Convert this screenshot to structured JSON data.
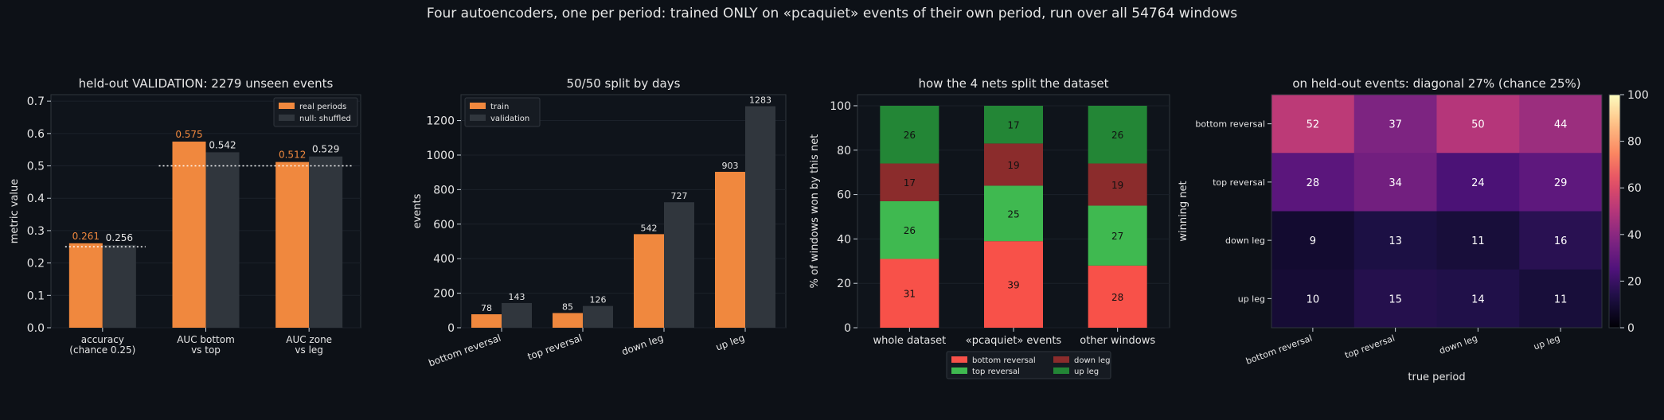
{
  "suptitle": "Four autoencoders, one per period: trained ONLY on «pcaquiet» events of their own period, run over all 54764 windows",
  "colors": {
    "orange": "#f0883e",
    "gray": "#30363d",
    "bg": "#0d1117",
    "axes": "#0f141b",
    "text": "#e6e6e6",
    "label_orange": "#f0883e",
    "bottom_reversal": "#f85149",
    "top_reversal": "#3fb950",
    "down_leg": "#8b2c2c",
    "up_leg": "#238636"
  },
  "chart_data": [
    {
      "type": "bar",
      "title": "held-out VALIDATION: 2279 unseen events",
      "ylabel": "metric value",
      "ylim": [
        0,
        0.72
      ],
      "yticks": [
        "0.0",
        "0.1",
        "0.2",
        "0.3",
        "0.4",
        "0.5",
        "0.6",
        "0.7"
      ],
      "categories": [
        [
          "accuracy",
          "(chance 0.25)"
        ],
        [
          "AUC bottom",
          "vs top"
        ],
        [
          "AUC zone",
          "vs leg"
        ]
      ],
      "series": [
        {
          "name": "real periods",
          "values": [
            0.261,
            0.575,
            0.512
          ],
          "labels": [
            "0.261",
            "0.575",
            "0.512"
          ]
        },
        {
          "name": "null: shuffled",
          "values": [
            0.256,
            0.542,
            0.529
          ],
          "labels": [
            "0.256",
            "0.542",
            "0.529"
          ]
        }
      ],
      "reference_lines": [
        {
          "from_category": 0,
          "value": 0.25
        },
        {
          "from_category": 1,
          "to_category": 2,
          "value": 0.5
        }
      ],
      "legend": "top-right"
    },
    {
      "type": "bar",
      "title": "50/50 split by days",
      "ylabel": "events",
      "ylim": [
        0,
        1350
      ],
      "yticks": [
        "0",
        "200",
        "400",
        "600",
        "800",
        "1000",
        "1200"
      ],
      "categories": [
        "bottom reversal",
        "top reversal",
        "down leg",
        "up leg"
      ],
      "series": [
        {
          "name": "train",
          "values": [
            78,
            85,
            542,
            903
          ],
          "labels": [
            "78",
            "85",
            "542",
            "903"
          ]
        },
        {
          "name": "validation",
          "values": [
            143,
            126,
            727,
            1283
          ],
          "labels": [
            "143",
            "126",
            "727",
            "1283"
          ]
        }
      ],
      "legend": "top-left"
    },
    {
      "type": "bar",
      "stacked": true,
      "title": "how the 4 nets split the dataset",
      "ylabel": "% of windows won by this net",
      "ylim": [
        0,
        105
      ],
      "yticks": [
        "0",
        "20",
        "40",
        "60",
        "80",
        "100"
      ],
      "categories": [
        "whole dataset",
        "«pcaquiet» events",
        "other windows"
      ],
      "series": [
        {
          "name": "bottom reversal",
          "values": [
            31,
            39,
            28
          ]
        },
        {
          "name": "top reversal",
          "values": [
            26,
            25,
            27
          ]
        },
        {
          "name": "down leg",
          "values": [
            17,
            19,
            19
          ]
        },
        {
          "name": "up leg",
          "values": [
            26,
            17,
            26
          ]
        }
      ],
      "legend": "bottom"
    },
    {
      "type": "heatmap",
      "title": "on held-out events: diagonal 27% (chance 25%)",
      "xlabel": "true period",
      "ylabel": "winning net",
      "x": [
        "bottom reversal",
        "top reversal",
        "down leg",
        "up leg"
      ],
      "y": [
        "bottom reversal",
        "top reversal",
        "down leg",
        "up leg"
      ],
      "values": [
        [
          52,
          37,
          50,
          44
        ],
        [
          28,
          34,
          24,
          29
        ],
        [
          9,
          13,
          11,
          16
        ],
        [
          10,
          15,
          14,
          11
        ]
      ],
      "vmin": 0,
      "vmax": 100,
      "colorbar_ticks": [
        "0",
        "20",
        "40",
        "60",
        "80",
        "100"
      ]
    }
  ]
}
